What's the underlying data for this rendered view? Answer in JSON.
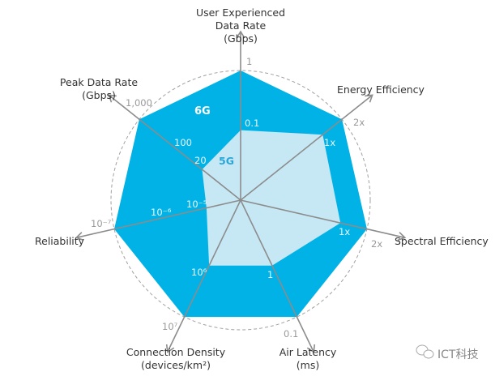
{
  "chart_data": {
    "type": "radar",
    "axes": [
      {
        "label": [
          "User Experienced",
          "Data Rate",
          "(Gbps)"
        ],
        "g5_value": "0.1",
        "g6_value": "1"
      },
      {
        "label": [
          "Energy Efficiency"
        ],
        "g5_value": "1x",
        "g6_value": "2x"
      },
      {
        "label": [
          "Spectral Efficiency"
        ],
        "g5_value": "1x",
        "g6_value": "2x"
      },
      {
        "label": [
          "Air Latency",
          "(ms)"
        ],
        "g5_value": "1",
        "g6_value": "0.1"
      },
      {
        "label": [
          "Connection Density",
          "(devices/km²)"
        ],
        "g5_value": "10⁶",
        "g6_value": "10⁷"
      },
      {
        "label": [
          "Reliability"
        ],
        "g5_value": "10⁻⁵",
        "g6_value": "10⁻⁷"
      },
      {
        "label": [
          "Peak Data Rate",
          "(Gbps)"
        ],
        "g5_value": "20",
        "g6_value": "1,000"
      }
    ],
    "extra_ticks": {
      "peak_100": "100",
      "reliability_1e-6": "10⁻⁶"
    },
    "series": [
      {
        "name": "6G",
        "color": "#00b2e6",
        "radius_fraction": [
          1,
          1,
          1,
          1,
          1,
          1,
          1
        ]
      },
      {
        "name": "5G",
        "color": "#c6e7f4",
        "radius_fraction": [
          0.54,
          0.81,
          0.79,
          0.56,
          0.56,
          0.27,
          0.38
        ]
      }
    ],
    "grid": "dashed circles"
  },
  "watermark": "ICT科技"
}
